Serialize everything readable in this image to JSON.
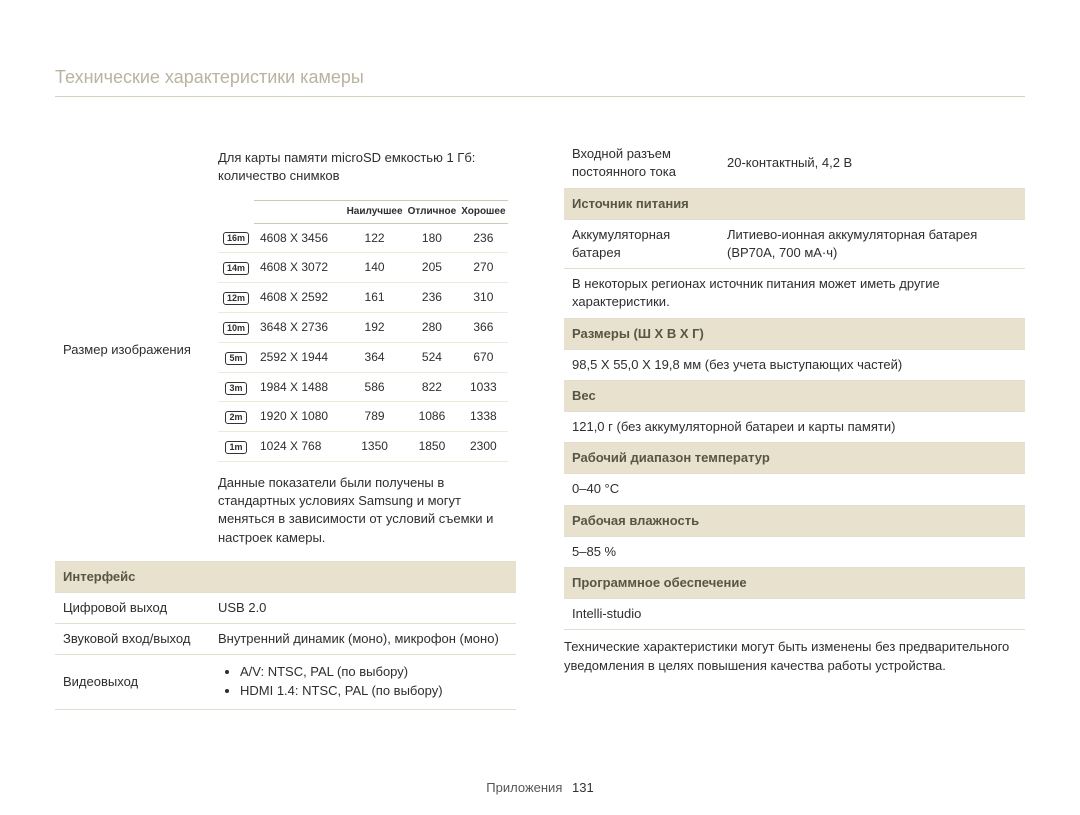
{
  "page_title": "Технические характеристики камеры",
  "footer_label": "Приложения",
  "footer_page": "131",
  "colors": {
    "title_color": "#b9b39f",
    "title_border": "#d5d0be",
    "section_bg": "#e7e1cd",
    "section_text": "#595544",
    "row_border": "#e2ddcd",
    "res_header_border": "#cfcab7",
    "res_row_border": "#eee9d9"
  },
  "left": {
    "image_size_label": "Размер изображения",
    "microsd_note": "Для карты памяти microSD емкостью 1 Гб: количество снимков",
    "res_table": {
      "headers": [
        "",
        "",
        "Наилучшее",
        "Отличное",
        "Хорошее"
      ],
      "rows": [
        {
          "icon": "16m",
          "dim": "4608 X 3456",
          "c1": "122",
          "c2": "180",
          "c3": "236"
        },
        {
          "icon": "14m",
          "dim": "4608 X 3072",
          "c1": "140",
          "c2": "205",
          "c3": "270"
        },
        {
          "icon": "12m",
          "dim": "4608 X 2592",
          "c1": "161",
          "c2": "236",
          "c3": "310"
        },
        {
          "icon": "10m",
          "dim": "3648 X 2736",
          "c1": "192",
          "c2": "280",
          "c3": "366"
        },
        {
          "icon": "5m",
          "dim": "2592 X 1944",
          "c1": "364",
          "c2": "524",
          "c3": "670"
        },
        {
          "icon": "3m",
          "dim": "1984 X 1488",
          "c1": "586",
          "c2": "822",
          "c3": "1033"
        },
        {
          "icon": "2m",
          "dim": "1920 X 1080",
          "c1": "789",
          "c2": "1086",
          "c3": "1338"
        },
        {
          "icon": "1m",
          "dim": "1024 X 768",
          "c1": "1350",
          "c2": "1850",
          "c3": "2300"
        }
      ]
    },
    "conditions_note": "Данные показатели были получены в стандартных условиях Samsung и могут меняться в зависимости от условий съемки и настроек камеры.",
    "interface_header": "Интерфейс",
    "digital_out_label": "Цифровой выход",
    "digital_out_value": "USB 2.0",
    "audio_label": "Звуковой вход/выход",
    "audio_value": "Внутренний динамик (моно), микрофон (моно)",
    "video_out_label": "Видеовыход",
    "video_out_items": [
      "A/V: NTSC, PAL (по выбору)",
      "HDMI 1.4: NTSC, PAL (по выбору)"
    ]
  },
  "right": {
    "dc_label": "Входной разъем постоянного тока",
    "dc_value": "20-контактный, 4,2 В",
    "power_header": "Источник питания",
    "battery_label": "Аккумуляторная батарея",
    "battery_value": "Литиево-ионная аккумуляторная батарея (BP70A, 700 мА·ч)",
    "power_note": "В некоторых регионах источник питания может иметь другие характеристики.",
    "dims_header": "Размеры (Ш X В X Г)",
    "dims_value": "98,5 X 55,0 X 19,8 мм (без учета выступающих частей)",
    "weight_header": "Вес",
    "weight_value": "121,0 г (без аккумуляторной батареи и карты памяти)",
    "temp_header": "Рабочий диапазон температур",
    "temp_value": "0–40 °C",
    "humidity_header": "Рабочая влажность",
    "humidity_value": "5–85 %",
    "software_header": "Программное обеспечение",
    "software_value": "Intelli-studio",
    "disclaimer": "Технические характеристики могут быть изменены без предварительного уведомления в целях повышения качества работы устройства."
  }
}
